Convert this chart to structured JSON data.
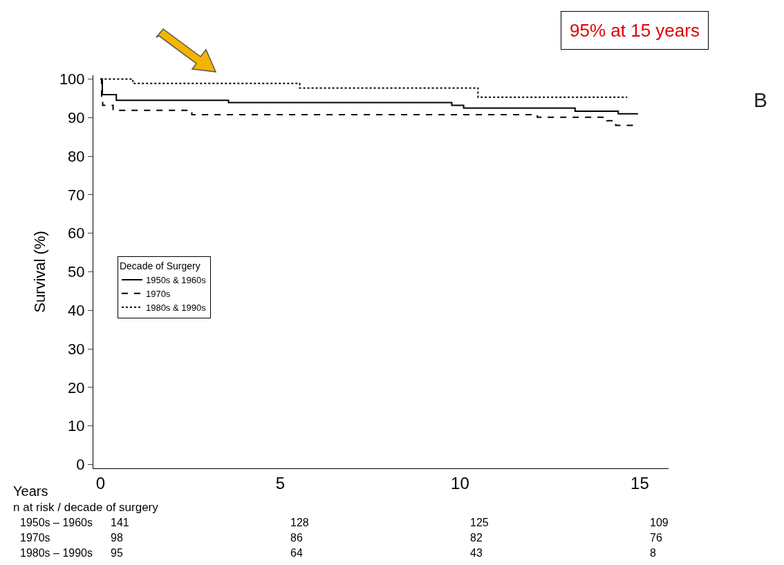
{
  "chart_data": {
    "type": "step",
    "xlabel": "Years",
    "ylabel": "Survival (%)",
    "legend_title": "Decade of Surgery",
    "series": [
      {
        "name": "1950s & 1960s",
        "color": "#000000",
        "line_style": "solid",
        "x": [
          0,
          0.05,
          0.44,
          3.56,
          9.77,
          10.1,
          13.2,
          14.4,
          14.95
        ],
        "values": [
          100,
          96,
          94.5,
          93.9,
          93.2,
          92.5,
          91.7,
          91,
          91
        ]
      },
      {
        "name": "1970s",
        "color": "#000000",
        "line_style": "dashed",
        "x": [
          0,
          0.03,
          0.06,
          0.35,
          2.54,
          12.15,
          14.08,
          14.33,
          14.87
        ],
        "values": [
          100,
          95.2,
          93.2,
          91.9,
          90.8,
          90.1,
          89.2,
          88,
          88
        ]
      },
      {
        "name": "1980s & 1990s",
        "color": "#000000",
        "line_style": "dotted",
        "x": [
          0,
          0.9,
          5.54,
          10.5,
          14.65
        ],
        "values": [
          100,
          98.9,
          97.7,
          95.3,
          95.3
        ]
      }
    ],
    "xlim": [
      -0.2,
      15.8
    ],
    "xticks": [
      0,
      5,
      10,
      15
    ],
    "ylim": [
      -1,
      101
    ],
    "yticks": [
      0,
      10,
      20,
      30,
      40,
      50,
      60,
      70,
      80,
      90,
      100
    ],
    "grid": false,
    "legend": "left",
    "marker": "none",
    "annotations": [
      "95% at 15 years",
      "B",
      "n at risk / decade of surgery",
      "1950s – 1960s",
      "141",
      "128",
      "125",
      "109",
      "1970s",
      "98",
      "86",
      "82",
      "76",
      "1980s – 1990s",
      "95",
      "64",
      "43",
      "8"
    ]
  }
}
